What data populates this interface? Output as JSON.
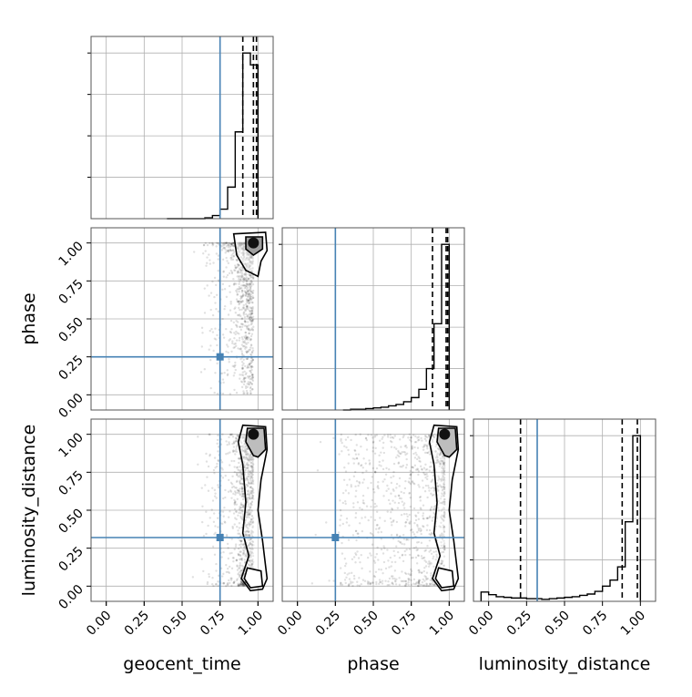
{
  "chart_data": {
    "type": "corner",
    "parameters": [
      "geocent_time",
      "phase",
      "luminosity_distance"
    ],
    "axis_labels": {
      "x": [
        "geocent_time",
        "phase",
        "luminosity_distance"
      ],
      "y": [
        "",
        "phase",
        "luminosity_distance"
      ]
    },
    "tick_values": [
      0.0,
      0.25,
      0.5,
      0.75,
      1.0
    ],
    "tick_labels": [
      "0.00",
      "0.25",
      "0.50",
      "0.75",
      "1.00"
    ],
    "ranges": [
      [
        -0.1,
        1.1
      ],
      [
        -0.1,
        1.1
      ],
      [
        -0.1,
        1.1
      ]
    ],
    "truths": [
      0.75,
      0.25,
      0.32
    ],
    "colors": {
      "truth": "#4682b4",
      "hist": "#000000",
      "grid": "#b0b0b0",
      "scatter": "#000000"
    },
    "grid": true,
    "histograms": [
      {
        "param": "geocent_time",
        "bin_edges": [
          0.4,
          0.45,
          0.5,
          0.55,
          0.6,
          0.65,
          0.7,
          0.75,
          0.8,
          0.85,
          0.9,
          0.95,
          1.0
        ],
        "counts": [
          0,
          0,
          0,
          0,
          0,
          1,
          4,
          12,
          40,
          110,
          210,
          195
        ],
        "quantiles": [
          0.9,
          0.97,
          0.99
        ]
      },
      {
        "param": "phase",
        "bin_edges": [
          0.3,
          0.35,
          0.4,
          0.45,
          0.5,
          0.55,
          0.6,
          0.65,
          0.7,
          0.75,
          0.8,
          0.85,
          0.9,
          0.95,
          1.0
        ],
        "counts": [
          0,
          1,
          1,
          2,
          3,
          4,
          6,
          8,
          12,
          18,
          30,
          60,
          125,
          240
        ],
        "quantiles": [
          0.89,
          0.98,
          0.99
        ]
      },
      {
        "param": "luminosity_distance",
        "bin_edges": [
          -0.05,
          0.0,
          0.05,
          0.1,
          0.15,
          0.2,
          0.25,
          0.3,
          0.35,
          0.4,
          0.45,
          0.5,
          0.55,
          0.6,
          0.65,
          0.7,
          0.75,
          0.8,
          0.85,
          0.9,
          0.95,
          1.0
        ],
        "counts": [
          14,
          10,
          7,
          6,
          5,
          5,
          4,
          4,
          3,
          4,
          5,
          6,
          7,
          9,
          11,
          15,
          23,
          32,
          52,
          120,
          250
        ],
        "quantiles": [
          0.21,
          0.88,
          0.98
        ]
      }
    ],
    "credible_levels": [
      0.39,
      0.86
    ]
  }
}
